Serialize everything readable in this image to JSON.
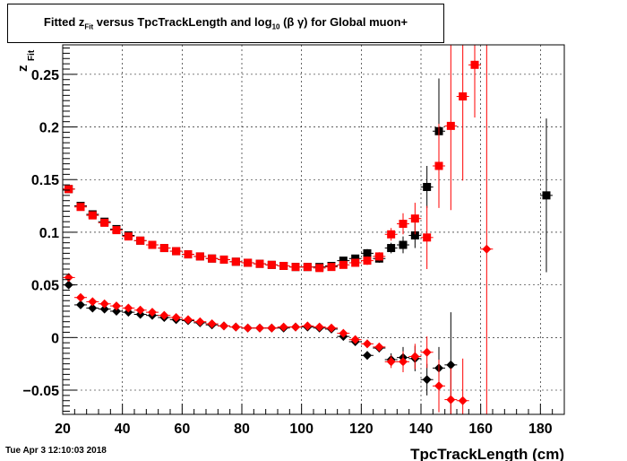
{
  "chart_data": {
    "type": "scatter",
    "title": "Fitted  z_Fit  versus TpcTrackLength and log_10 (β γ) for Global muon+",
    "title_parts": {
      "pre": "Fitted  z",
      "sub1": "Fit",
      "mid": "  versus TpcTrackLength and log",
      "sub2": "10",
      "post": " (β γ) for Global muon+"
    },
    "xlabel": "TpcTrackLength (cm)",
    "ylabel_main": "z",
    "ylabel_sub": "Fit",
    "xlim": [
      20,
      188
    ],
    "ylim": [
      -0.073,
      0.278
    ],
    "xticks": [
      20,
      40,
      60,
      80,
      100,
      120,
      140,
      160,
      180
    ],
    "xtick_labels": [
      "20",
      "40",
      "60",
      "80",
      "100",
      "120",
      "140",
      "160",
      "180"
    ],
    "yticks": [
      -0.05,
      0,
      0.05,
      0.1,
      0.15,
      0.2,
      0.25
    ],
    "ytick_labels": [
      "−0.05",
      "0",
      "0.05",
      "0.1",
      "0.15",
      "0.2",
      "0.25"
    ],
    "grid": true,
    "series": [
      {
        "color": "#000000",
        "marker": "square",
        "points": [
          {
            "x": 22,
            "y": 0.141,
            "err": 0.002
          },
          {
            "x": 26,
            "y": 0.125,
            "err": 0.002
          },
          {
            "x": 30,
            "y": 0.117,
            "err": 0.002
          },
          {
            "x": 34,
            "y": 0.11,
            "err": 0.002
          },
          {
            "x": 38,
            "y": 0.103,
            "err": 0.002
          },
          {
            "x": 42,
            "y": 0.097,
            "err": 0.002
          },
          {
            "x": 46,
            "y": 0.092,
            "err": 0.002
          },
          {
            "x": 50,
            "y": 0.088,
            "err": 0.002
          },
          {
            "x": 54,
            "y": 0.085,
            "err": 0.002
          },
          {
            "x": 58,
            "y": 0.082,
            "err": 0.002
          },
          {
            "x": 62,
            "y": 0.079,
            "err": 0.002
          },
          {
            "x": 66,
            "y": 0.077,
            "err": 0.002
          },
          {
            "x": 70,
            "y": 0.075,
            "err": 0.002
          },
          {
            "x": 74,
            "y": 0.074,
            "err": 0.002
          },
          {
            "x": 78,
            "y": 0.072,
            "err": 0.002
          },
          {
            "x": 82,
            "y": 0.071,
            "err": 0.002
          },
          {
            "x": 86,
            "y": 0.07,
            "err": 0.002
          },
          {
            "x": 90,
            "y": 0.069,
            "err": 0.002
          },
          {
            "x": 94,
            "y": 0.068,
            "err": 0.002
          },
          {
            "x": 98,
            "y": 0.067,
            "err": 0.002
          },
          {
            "x": 102,
            "y": 0.067,
            "err": 0.002
          },
          {
            "x": 106,
            "y": 0.067,
            "err": 0.002
          },
          {
            "x": 110,
            "y": 0.068,
            "err": 0.002
          },
          {
            "x": 114,
            "y": 0.073,
            "err": 0.002
          },
          {
            "x": 118,
            "y": 0.075,
            "err": 0.003
          },
          {
            "x": 122,
            "y": 0.08,
            "err": 0.004
          },
          {
            "x": 126,
            "y": 0.075,
            "err": 0.004
          },
          {
            "x": 130,
            "y": 0.085,
            "err": 0.005
          },
          {
            "x": 134,
            "y": 0.088,
            "err": 0.008
          },
          {
            "x": 138,
            "y": 0.097,
            "err": 0.012
          },
          {
            "x": 142,
            "y": 0.143,
            "err": 0.02
          },
          {
            "x": 146,
            "y": 0.196,
            "err": 0.05
          },
          {
            "x": 182,
            "y": 0.135,
            "err": 0.073
          }
        ]
      },
      {
        "color": "#ff0000",
        "marker": "square",
        "points": [
          {
            "x": 22,
            "y": 0.141,
            "err": 0.002
          },
          {
            "x": 26,
            "y": 0.124,
            "err": 0.002
          },
          {
            "x": 30,
            "y": 0.116,
            "err": 0.002
          },
          {
            "x": 34,
            "y": 0.109,
            "err": 0.002
          },
          {
            "x": 38,
            "y": 0.102,
            "err": 0.002
          },
          {
            "x": 42,
            "y": 0.096,
            "err": 0.002
          },
          {
            "x": 46,
            "y": 0.092,
            "err": 0.002
          },
          {
            "x": 50,
            "y": 0.088,
            "err": 0.002
          },
          {
            "x": 54,
            "y": 0.085,
            "err": 0.002
          },
          {
            "x": 58,
            "y": 0.082,
            "err": 0.002
          },
          {
            "x": 62,
            "y": 0.079,
            "err": 0.002
          },
          {
            "x": 66,
            "y": 0.077,
            "err": 0.002
          },
          {
            "x": 70,
            "y": 0.075,
            "err": 0.002
          },
          {
            "x": 74,
            "y": 0.074,
            "err": 0.002
          },
          {
            "x": 78,
            "y": 0.072,
            "err": 0.002
          },
          {
            "x": 82,
            "y": 0.071,
            "err": 0.002
          },
          {
            "x": 86,
            "y": 0.07,
            "err": 0.002
          },
          {
            "x": 90,
            "y": 0.069,
            "err": 0.002
          },
          {
            "x": 94,
            "y": 0.068,
            "err": 0.002
          },
          {
            "x": 98,
            "y": 0.067,
            "err": 0.002
          },
          {
            "x": 102,
            "y": 0.067,
            "err": 0.002
          },
          {
            "x": 106,
            "y": 0.066,
            "err": 0.002
          },
          {
            "x": 110,
            "y": 0.067,
            "err": 0.002
          },
          {
            "x": 114,
            "y": 0.069,
            "err": 0.002
          },
          {
            "x": 118,
            "y": 0.071,
            "err": 0.003
          },
          {
            "x": 122,
            "y": 0.073,
            "err": 0.004
          },
          {
            "x": 126,
            "y": 0.077,
            "err": 0.004
          },
          {
            "x": 130,
            "y": 0.098,
            "err": 0.006
          },
          {
            "x": 134,
            "y": 0.108,
            "err": 0.01
          },
          {
            "x": 138,
            "y": 0.113,
            "err": 0.015
          },
          {
            "x": 142,
            "y": 0.095,
            "err": 0.03
          },
          {
            "x": 146,
            "y": 0.163,
            "err": 0.04
          },
          {
            "x": 150,
            "y": 0.201,
            "err": 0.08
          },
          {
            "x": 154,
            "y": 0.229,
            "err": 0.08
          },
          {
            "x": 158,
            "y": 0.259,
            "err": 0.05
          }
        ]
      },
      {
        "color": "#000000",
        "marker": "diamond",
        "points": [
          {
            "x": 22,
            "y": 0.05,
            "err": 0.002
          },
          {
            "x": 26,
            "y": 0.031,
            "err": 0.002
          },
          {
            "x": 30,
            "y": 0.028,
            "err": 0.002
          },
          {
            "x": 34,
            "y": 0.027,
            "err": 0.002
          },
          {
            "x": 38,
            "y": 0.025,
            "err": 0.002
          },
          {
            "x": 42,
            "y": 0.024,
            "err": 0.002
          },
          {
            "x": 46,
            "y": 0.022,
            "err": 0.002
          },
          {
            "x": 50,
            "y": 0.021,
            "err": 0.002
          },
          {
            "x": 54,
            "y": 0.019,
            "err": 0.002
          },
          {
            "x": 58,
            "y": 0.017,
            "err": 0.002
          },
          {
            "x": 62,
            "y": 0.016,
            "err": 0.002
          },
          {
            "x": 66,
            "y": 0.014,
            "err": 0.002
          },
          {
            "x": 70,
            "y": 0.012,
            "err": 0.002
          },
          {
            "x": 74,
            "y": 0.011,
            "err": 0.002
          },
          {
            "x": 78,
            "y": 0.01,
            "err": 0.002
          },
          {
            "x": 82,
            "y": 0.009,
            "err": 0.002
          },
          {
            "x": 86,
            "y": 0.009,
            "err": 0.002
          },
          {
            "x": 90,
            "y": 0.009,
            "err": 0.002
          },
          {
            "x": 94,
            "y": 0.009,
            "err": 0.002
          },
          {
            "x": 98,
            "y": 0.01,
            "err": 0.002
          },
          {
            "x": 102,
            "y": 0.01,
            "err": 0.002
          },
          {
            "x": 106,
            "y": 0.009,
            "err": 0.002
          },
          {
            "x": 110,
            "y": 0.008,
            "err": 0.002
          },
          {
            "x": 114,
            "y": 0.001,
            "err": 0.003
          },
          {
            "x": 118,
            "y": -0.004,
            "err": 0.003
          },
          {
            "x": 122,
            "y": -0.017,
            "err": 0.004
          },
          {
            "x": 126,
            "y": -0.01,
            "err": 0.004
          },
          {
            "x": 130,
            "y": -0.021,
            "err": 0.006
          },
          {
            "x": 134,
            "y": -0.019,
            "err": 0.01
          },
          {
            "x": 138,
            "y": -0.02,
            "err": 0.012
          },
          {
            "x": 142,
            "y": -0.04,
            "err": 0.015
          },
          {
            "x": 146,
            "y": -0.029,
            "err": 0.02
          },
          {
            "x": 150,
            "y": -0.026,
            "err": 0.05
          }
        ]
      },
      {
        "color": "#ff0000",
        "marker": "diamond",
        "points": [
          {
            "x": 22,
            "y": 0.057,
            "err": 0.002
          },
          {
            "x": 26,
            "y": 0.038,
            "err": 0.002
          },
          {
            "x": 30,
            "y": 0.034,
            "err": 0.002
          },
          {
            "x": 34,
            "y": 0.032,
            "err": 0.002
          },
          {
            "x": 38,
            "y": 0.03,
            "err": 0.002
          },
          {
            "x": 42,
            "y": 0.028,
            "err": 0.002
          },
          {
            "x": 46,
            "y": 0.026,
            "err": 0.002
          },
          {
            "x": 50,
            "y": 0.024,
            "err": 0.002
          },
          {
            "x": 54,
            "y": 0.021,
            "err": 0.002
          },
          {
            "x": 58,
            "y": 0.019,
            "err": 0.002
          },
          {
            "x": 62,
            "y": 0.017,
            "err": 0.002
          },
          {
            "x": 66,
            "y": 0.015,
            "err": 0.002
          },
          {
            "x": 70,
            "y": 0.013,
            "err": 0.002
          },
          {
            "x": 74,
            "y": 0.011,
            "err": 0.002
          },
          {
            "x": 78,
            "y": 0.01,
            "err": 0.002
          },
          {
            "x": 82,
            "y": 0.009,
            "err": 0.002
          },
          {
            "x": 86,
            "y": 0.009,
            "err": 0.002
          },
          {
            "x": 90,
            "y": 0.009,
            "err": 0.002
          },
          {
            "x": 94,
            "y": 0.01,
            "err": 0.002
          },
          {
            "x": 98,
            "y": 0.01,
            "err": 0.002
          },
          {
            "x": 102,
            "y": 0.011,
            "err": 0.002
          },
          {
            "x": 106,
            "y": 0.01,
            "err": 0.002
          },
          {
            "x": 110,
            "y": 0.009,
            "err": 0.002
          },
          {
            "x": 114,
            "y": 0.004,
            "err": 0.003
          },
          {
            "x": 118,
            "y": -0.002,
            "err": 0.003
          },
          {
            "x": 122,
            "y": -0.006,
            "err": 0.004
          },
          {
            "x": 126,
            "y": -0.009,
            "err": 0.004
          },
          {
            "x": 130,
            "y": -0.023,
            "err": 0.006
          },
          {
            "x": 134,
            "y": -0.023,
            "err": 0.01
          },
          {
            "x": 138,
            "y": -0.018,
            "err": 0.012
          },
          {
            "x": 142,
            "y": -0.014,
            "err": 0.015
          },
          {
            "x": 146,
            "y": -0.046,
            "err": 0.025
          },
          {
            "x": 150,
            "y": -0.059,
            "err": 0.03
          },
          {
            "x": 154,
            "y": -0.06,
            "err": 0.04
          },
          {
            "x": 162,
            "y": 0.084,
            "err": 0.2
          }
        ]
      }
    ]
  },
  "footer": {
    "timestamp": "Tue Apr  3 12:10:03 2018"
  }
}
